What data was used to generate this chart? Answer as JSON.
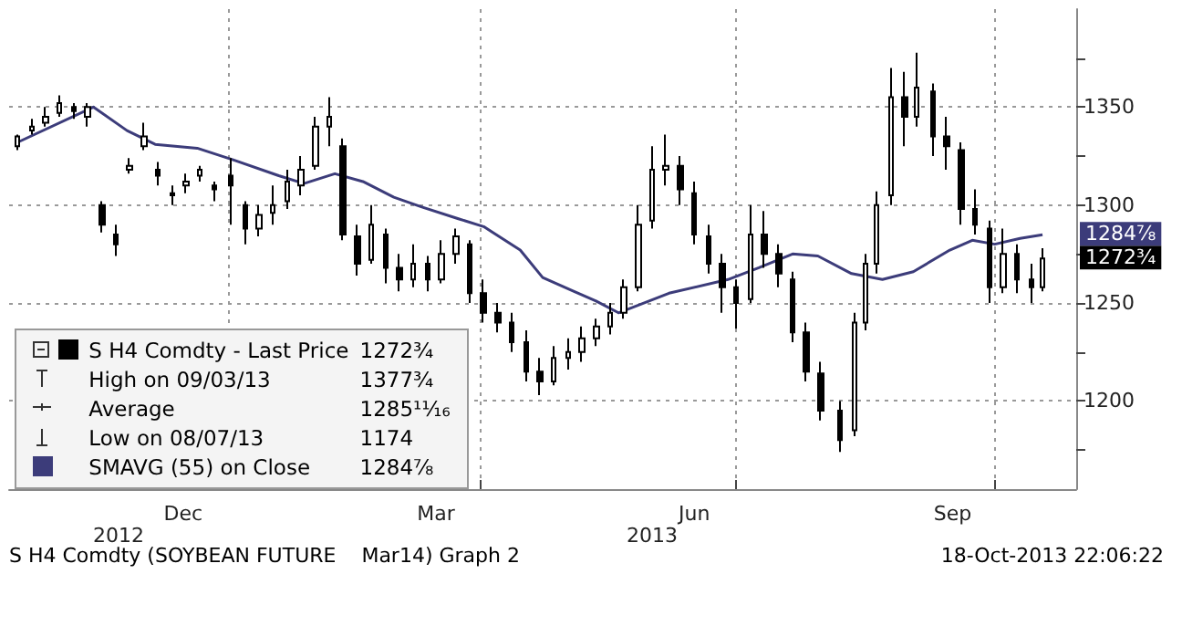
{
  "chart_data": {
    "type": "candlestick",
    "series": [
      {
        "name": "S H4 Comdty - Last Price",
        "color": "#000000",
        "x": [
          "2012-10-18",
          "2012-10-23",
          "2012-10-28",
          "2012-11-02",
          "2012-11-07",
          "2012-11-12",
          "2012-11-17",
          "2012-11-22",
          "2012-11-27",
          "2012-12-02",
          "2012-12-07",
          "2012-12-12",
          "2012-12-17",
          "2012-12-22",
          "2012-12-27",
          "2013-01-02",
          "2013-01-07",
          "2013-01-12",
          "2013-01-17",
          "2013-01-22",
          "2013-01-27",
          "2013-02-01",
          "2013-02-06",
          "2013-02-11",
          "2013-02-16",
          "2013-02-21",
          "2013-02-26",
          "2013-03-03",
          "2013-03-08",
          "2013-03-13",
          "2013-03-18",
          "2013-03-23",
          "2013-03-28",
          "2013-04-02",
          "2013-04-07",
          "2013-04-12",
          "2013-04-17",
          "2013-04-22",
          "2013-04-27",
          "2013-05-02",
          "2013-05-07",
          "2013-05-12",
          "2013-05-17",
          "2013-05-22",
          "2013-05-27",
          "2013-06-01",
          "2013-06-06",
          "2013-06-11",
          "2013-06-16",
          "2013-06-21",
          "2013-06-26",
          "2013-07-01",
          "2013-07-06",
          "2013-07-11",
          "2013-07-16",
          "2013-07-21",
          "2013-07-26",
          "2013-07-31",
          "2013-08-07",
          "2013-08-12",
          "2013-08-16",
          "2013-08-20",
          "2013-08-25",
          "2013-08-30",
          "2013-09-03",
          "2013-09-09",
          "2013-09-14",
          "2013-09-19",
          "2013-09-24",
          "2013-09-29",
          "2013-10-04",
          "2013-10-09",
          "2013-10-14",
          "2013-10-18"
        ],
        "ohlc": [
          [
            1330,
            1336,
            1328,
            1335
          ],
          [
            1338,
            1344,
            1336,
            1340
          ],
          [
            1342,
            1350,
            1340,
            1345
          ],
          [
            1347,
            1356,
            1345,
            1352
          ],
          [
            1350,
            1352,
            1344,
            1348
          ],
          [
            1345,
            1352,
            1340,
            1350
          ],
          [
            1300,
            1302,
            1286,
            1290
          ],
          [
            1285,
            1290,
            1274,
            1280
          ],
          [
            1318,
            1324,
            1316,
            1320
          ],
          [
            1330,
            1342,
            1328,
            1335
          ],
          [
            1318,
            1322,
            1310,
            1315
          ],
          [
            1306,
            1310,
            1300,
            1305
          ],
          [
            1310,
            1316,
            1306,
            1312
          ],
          [
            1315,
            1320,
            1312,
            1318
          ],
          [
            1310,
            1312,
            1302,
            1308
          ],
          [
            1315,
            1324,
            1290,
            1310
          ],
          [
            1300,
            1302,
            1280,
            1288
          ],
          [
            1288,
            1300,
            1284,
            1295
          ],
          [
            1296,
            1310,
            1290,
            1300
          ],
          [
            1302,
            1318,
            1298,
            1312
          ],
          [
            1310,
            1325,
            1305,
            1318
          ],
          [
            1320,
            1345,
            1318,
            1340
          ],
          [
            1340,
            1355,
            1330,
            1345
          ],
          [
            1330,
            1334,
            1282,
            1285
          ],
          [
            1284,
            1290,
            1264,
            1270
          ],
          [
            1272,
            1300,
            1270,
            1290
          ],
          [
            1285,
            1288,
            1260,
            1268
          ],
          [
            1268,
            1275,
            1256,
            1262
          ],
          [
            1262,
            1280,
            1258,
            1270
          ],
          [
            1270,
            1274,
            1256,
            1262
          ],
          [
            1262,
            1282,
            1260,
            1275
          ],
          [
            1275,
            1288,
            1270,
            1284
          ],
          [
            1280,
            1282,
            1250,
            1255
          ],
          [
            1255,
            1262,
            1240,
            1245
          ],
          [
            1245,
            1250,
            1235,
            1240
          ],
          [
            1240,
            1245,
            1225,
            1230
          ],
          [
            1230,
            1236,
            1210,
            1215
          ],
          [
            1215,
            1222,
            1203,
            1210
          ],
          [
            1210,
            1228,
            1208,
            1222
          ],
          [
            1222,
            1232,
            1216,
            1225
          ],
          [
            1225,
            1238,
            1220,
            1232
          ],
          [
            1232,
            1242,
            1228,
            1238
          ],
          [
            1238,
            1250,
            1234,
            1245
          ],
          [
            1245,
            1262,
            1242,
            1258
          ],
          [
            1258,
            1300,
            1256,
            1290
          ],
          [
            1292,
            1330,
            1288,
            1318
          ],
          [
            1318,
            1336,
            1310,
            1320
          ],
          [
            1320,
            1325,
            1300,
            1308
          ],
          [
            1306,
            1312,
            1280,
            1285
          ],
          [
            1284,
            1290,
            1265,
            1270
          ],
          [
            1270,
            1275,
            1245,
            1258
          ],
          [
            1258,
            1262,
            1237,
            1250
          ],
          [
            1252,
            1300,
            1250,
            1285
          ],
          [
            1285,
            1297,
            1268,
            1275
          ],
          [
            1275,
            1280,
            1258,
            1265
          ],
          [
            1262,
            1266,
            1230,
            1235
          ],
          [
            1235,
            1240,
            1210,
            1215
          ],
          [
            1214,
            1220,
            1190,
            1195
          ],
          [
            1195,
            1200,
            1174,
            1180
          ],
          [
            1185,
            1245,
            1182,
            1240
          ],
          [
            1240,
            1275,
            1236,
            1270
          ],
          [
            1270,
            1307,
            1265,
            1300
          ],
          [
            1305,
            1370,
            1300,
            1355
          ],
          [
            1355,
            1368,
            1330,
            1345
          ],
          [
            1345,
            1377.75,
            1340,
            1360
          ],
          [
            1358,
            1362,
            1325,
            1335
          ],
          [
            1335,
            1345,
            1318,
            1330
          ],
          [
            1328,
            1332,
            1290,
            1298
          ],
          [
            1298,
            1308,
            1285,
            1290
          ],
          [
            1288,
            1292,
            1250,
            1258
          ],
          [
            1258,
            1288,
            1255,
            1275
          ],
          [
            1275,
            1280,
            1255,
            1262
          ],
          [
            1262,
            1270,
            1250,
            1258
          ],
          [
            1258,
            1278,
            1256,
            1272.75
          ]
        ]
      },
      {
        "name": "SMAVG (55) on Close",
        "type": "line",
        "color": "#3c3c7a",
        "x": [
          "2012-10-18",
          "2012-11-14",
          "2012-11-26",
          "2012-12-06",
          "2012-12-21",
          "2013-01-03",
          "2013-01-19",
          "2013-01-28",
          "2013-02-08",
          "2013-02-18",
          "2013-03-01",
          "2013-03-11",
          "2013-03-24",
          "2013-04-02",
          "2013-04-15",
          "2013-04-23",
          "2013-05-04",
          "2013-05-12",
          "2013-05-20",
          "2013-06-07",
          "2013-06-28",
          "2013-07-09",
          "2013-07-21",
          "2013-07-30",
          "2013-08-11",
          "2013-08-22",
          "2013-09-02",
          "2013-09-15",
          "2013-09-23",
          "2013-10-01",
          "2013-10-10",
          "2013-10-18"
        ],
        "values": [
          1332,
          1350,
          1338,
          1331,
          1329,
          1323,
          1315,
          1311,
          1316,
          1312,
          1304,
          1299,
          1293,
          1289,
          1277,
          1263,
          1256,
          1251,
          1245,
          1255,
          1262,
          1268,
          1275,
          1274,
          1265,
          1262,
          1266,
          1277,
          1282,
          1280,
          1283,
          1284.875
        ]
      }
    ],
    "xlim": [
      "2012-10-15",
      "2013-10-30"
    ],
    "xticks": [
      {
        "value": "2013-01-01",
        "label": null
      },
      {
        "value": "2013-04-01",
        "label": null
      },
      {
        "value": "2013-07-01",
        "label": null
      },
      {
        "value": "2013-10-01",
        "label": null
      },
      {
        "value": "2012-12-16",
        "label": "Dec"
      },
      {
        "value": "2013-03-16",
        "label": "Mar"
      },
      {
        "value": "2013-06-16",
        "label": "Jun"
      },
      {
        "value": "2013-09-16",
        "label": "Sep"
      }
    ],
    "ylim": [
      1155,
      1400
    ],
    "yticks": [
      {
        "value": 1175,
        "label": null
      },
      1200,
      {
        "value": 1225,
        "label": null
      },
      1250,
      {
        "value": 1275,
        "label": null
      },
      1300,
      {
        "value": 1325,
        "label": null
      },
      1350,
      {
        "value": 1375,
        "label": null
      }
    ],
    "grid": true,
    "legend": "bottom left",
    "marker": "none",
    "line_style": "solid",
    "annotations": [
      "High on 09/03/13",
      "1377¾",
      "Average",
      "1285¹¹⁄₁₆",
      "Low on 08/07/13",
      "1174",
      "S H4 Comdty (SOYBEAN FUTURE    Mar14) Graph 2",
      "18-Oct-2013 22:06:22",
      {
        "text": "1272¾",
        "x": "2013-10-18",
        "y": 1272.75
      },
      {
        "text": "1284⅞",
        "x": "2013-10-18",
        "y": 1284.875
      },
      "2012",
      "2013"
    ]
  }
}
